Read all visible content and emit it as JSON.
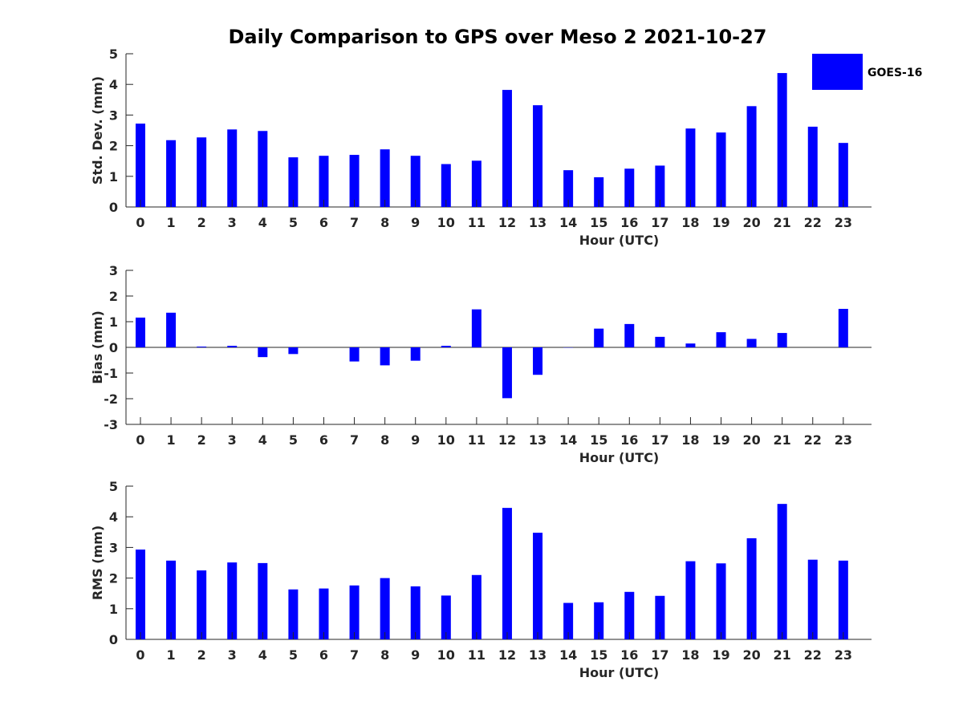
{
  "title": "Daily Comparison to GPS over Meso 2 2021-10-27",
  "legend": {
    "label": "GOES-16",
    "color": "#0000ff"
  },
  "chart_data": [
    {
      "type": "bar",
      "xlabel": "Hour (UTC)",
      "ylabel": "Std. Dev. (mm)",
      "categories": [
        "0",
        "1",
        "2",
        "3",
        "4",
        "5",
        "6",
        "7",
        "8",
        "9",
        "10",
        "11",
        "12",
        "13",
        "14",
        "15",
        "16",
        "17",
        "18",
        "19",
        "20",
        "21",
        "22",
        "23"
      ],
      "values": [
        2.72,
        2.18,
        2.27,
        2.53,
        2.48,
        1.62,
        1.67,
        1.7,
        1.88,
        1.67,
        1.4,
        1.51,
        3.82,
        3.32,
        1.2,
        0.97,
        1.25,
        1.35,
        2.56,
        2.43,
        3.29,
        4.37,
        2.62,
        2.09
      ],
      "ylim": [
        0,
        5
      ],
      "yticks": [
        "0",
        "1",
        "2",
        "3",
        "4",
        "5"
      ],
      "series_name": "GOES-16",
      "color": "#0000ff"
    },
    {
      "type": "bar",
      "xlabel": "Hour (UTC)",
      "ylabel": "Bias (mm)",
      "categories": [
        "0",
        "1",
        "2",
        "3",
        "4",
        "5",
        "6",
        "7",
        "8",
        "9",
        "10",
        "11",
        "12",
        "13",
        "14",
        "15",
        "16",
        "17",
        "18",
        "19",
        "20",
        "21",
        "22",
        "23"
      ],
      "values": [
        1.16,
        1.35,
        0.03,
        0.06,
        -0.38,
        -0.26,
        0.0,
        -0.55,
        -0.7,
        -0.52,
        0.06,
        1.48,
        -1.98,
        -1.07,
        -0.01,
        0.73,
        0.91,
        0.41,
        0.15,
        0.59,
        0.33,
        0.56,
        0.0,
        1.5
      ],
      "ylim": [
        -3,
        3
      ],
      "yticks": [
        "-3",
        "-2",
        "-1",
        "0",
        "1",
        "2",
        "3"
      ],
      "series_name": "GOES-16",
      "color": "#0000ff"
    },
    {
      "type": "bar",
      "xlabel": "Hour (UTC)",
      "ylabel": "RMS (mm)",
      "categories": [
        "0",
        "1",
        "2",
        "3",
        "4",
        "5",
        "6",
        "7",
        "8",
        "9",
        "10",
        "11",
        "12",
        "13",
        "14",
        "15",
        "16",
        "17",
        "18",
        "19",
        "20",
        "21",
        "22",
        "23"
      ],
      "values": [
        2.93,
        2.57,
        2.25,
        2.51,
        2.49,
        1.63,
        1.66,
        1.76,
        2.0,
        1.73,
        1.43,
        2.1,
        4.29,
        3.48,
        1.19,
        1.21,
        1.55,
        1.42,
        2.55,
        2.48,
        3.3,
        4.42,
        2.6,
        2.57
      ],
      "ylim": [
        0,
        5
      ],
      "yticks": [
        "0",
        "1",
        "2",
        "3",
        "4",
        "5"
      ],
      "series_name": "GOES-16",
      "color": "#0000ff"
    }
  ]
}
